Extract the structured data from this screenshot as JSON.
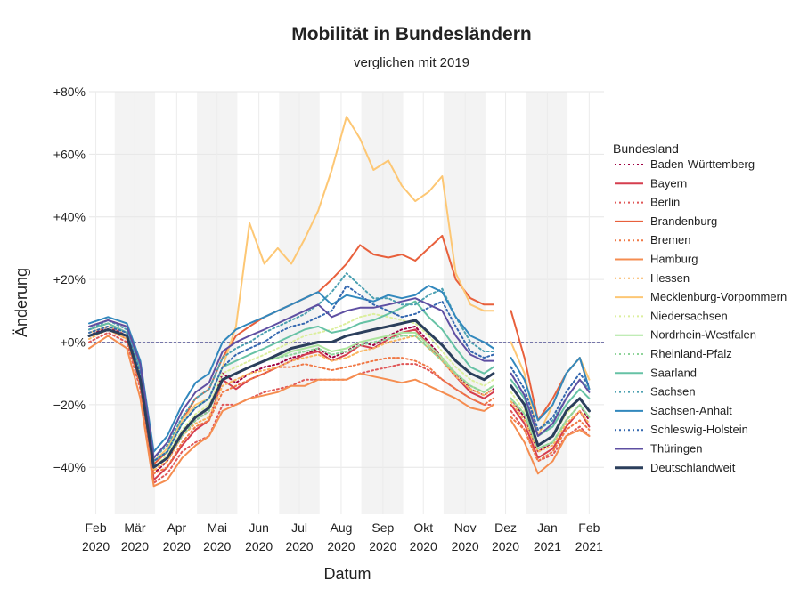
{
  "chart_data": {
    "type": "line",
    "title": "Mobilität in Bundesländern",
    "subtitle": "verglichen mit 2019",
    "xlabel": "Datum",
    "ylabel": "Änderung",
    "ylim": [
      -55,
      80
    ],
    "xlim": [
      "2020-01-27",
      "2021-02-12"
    ],
    "y_ticks": [
      {
        "value": 80,
        "label": "+80%"
      },
      {
        "value": 60,
        "label": "+60%"
      },
      {
        "value": 40,
        "label": "+40%"
      },
      {
        "value": 20,
        "label": "+20%"
      },
      {
        "value": 0,
        "label": "+0%"
      },
      {
        "value": -20,
        "label": "−20%"
      },
      {
        "value": -40,
        "label": "−40%"
      }
    ],
    "x_ticks": [
      {
        "date": "2020-02-01",
        "month": "Feb",
        "year": "2020"
      },
      {
        "date": "2020-03-01",
        "month": "Mär",
        "year": "2020"
      },
      {
        "date": "2020-04-01",
        "month": "Apr",
        "year": "2020"
      },
      {
        "date": "2020-05-01",
        "month": "Mai",
        "year": "2020"
      },
      {
        "date": "2020-06-01",
        "month": "Jun",
        "year": "2020"
      },
      {
        "date": "2020-07-01",
        "month": "Jul",
        "year": "2020"
      },
      {
        "date": "2020-08-01",
        "month": "Aug",
        "year": "2020"
      },
      {
        "date": "2020-09-01",
        "month": "Sep",
        "year": "2020"
      },
      {
        "date": "2020-10-01",
        "month": "Okt",
        "year": "2020"
      },
      {
        "date": "2020-11-01",
        "month": "Nov",
        "year": "2020"
      },
      {
        "date": "2020-12-01",
        "month": "Dez",
        "year": "2020"
      },
      {
        "date": "2021-01-01",
        "month": "Jan",
        "year": "2021"
      },
      {
        "date": "2021-02-01",
        "month": "Feb",
        "year": "2021"
      }
    ],
    "shaded_months": [
      [
        "2020-02-15",
        "2020-03-16"
      ],
      [
        "2020-04-16",
        "2020-05-16"
      ],
      [
        "2020-06-16",
        "2020-07-16"
      ],
      [
        "2020-08-16",
        "2020-09-16"
      ],
      [
        "2020-10-16",
        "2020-11-16"
      ],
      [
        "2020-12-16",
        "2021-01-16"
      ]
    ],
    "reference_line": 0,
    "grid": true,
    "legend_placement": "right",
    "legend_title": "Bundesland",
    "x": [
      "2020-01-27",
      "2020-02-10",
      "2020-02-24",
      "2020-03-05",
      "2020-03-15",
      "2020-03-25",
      "2020-04-05",
      "2020-04-15",
      "2020-04-25",
      "2020-05-05",
      "2020-05-15",
      "2020-05-25",
      "2020-06-05",
      "2020-06-15",
      "2020-06-25",
      "2020-07-05",
      "2020-07-15",
      "2020-07-25",
      "2020-08-05",
      "2020-08-15",
      "2020-08-25",
      "2020-09-05",
      "2020-09-15",
      "2020-09-25",
      "2020-10-05",
      "2020-10-15",
      "2020-10-25",
      "2020-11-05",
      "2020-11-15",
      "2020-11-22",
      "2020-11-28",
      "2020-12-05",
      "2020-12-15",
      "2020-12-25",
      "2021-01-05",
      "2021-01-15",
      "2021-01-25",
      "2021-02-01"
    ],
    "series": [
      {
        "name": "Baden-Württemberg",
        "color": "#9e0142",
        "dash": "dot",
        "values": [
          2,
          5,
          2,
          -12,
          -42,
          -38,
          -30,
          -25,
          -22,
          -10,
          -13,
          -10,
          -8,
          -7,
          -5,
          -4,
          -2,
          -5,
          -3,
          0,
          -1,
          2,
          4,
          5,
          0,
          -5,
          -10,
          -15,
          -17,
          -15,
          null,
          -18,
          -24,
          -35,
          -32,
          -25,
          -20,
          -25
        ]
      },
      {
        "name": "Bayern",
        "color": "#d53e4f",
        "dash": "solid",
        "values": [
          4,
          6,
          3,
          -10,
          -44,
          -40,
          -33,
          -28,
          -25,
          -12,
          -15,
          -12,
          -10,
          -8,
          -6,
          -4,
          -3,
          -6,
          -4,
          -1,
          -2,
          1,
          3,
          4,
          -1,
          -6,
          -11,
          -16,
          -18,
          -16,
          null,
          -20,
          -26,
          -37,
          -34,
          -27,
          -22,
          -27
        ]
      },
      {
        "name": "Berlin",
        "color": "#e05758",
        "dash": "dot",
        "values": [
          0,
          3,
          0,
          -15,
          -45,
          -42,
          -35,
          -32,
          -30,
          -20,
          -20,
          -18,
          -16,
          -15,
          -14,
          -12,
          -12,
          -12,
          -12,
          -10,
          -9,
          -8,
          -7,
          -7,
          -9,
          -12,
          -15,
          -18,
          -20,
          -20,
          null,
          -22,
          -28,
          -38,
          -36,
          -30,
          -27,
          -30
        ]
      },
      {
        "name": "Brandenburg",
        "color": "#e8603c",
        "dash": "solid",
        "values": [
          5,
          7,
          5,
          -8,
          -39,
          -35,
          -25,
          -18,
          -15,
          -5,
          2,
          5,
          8,
          10,
          12,
          14,
          16,
          20,
          25,
          31,
          28,
          27,
          28,
          26,
          30,
          34,
          20,
          14,
          12,
          12,
          null,
          10,
          -5,
          -25,
          -18,
          -10,
          -5,
          -15
        ]
      },
      {
        "name": "Bremen",
        "color": "#f07845",
        "dash": "dot",
        "values": [
          2,
          4,
          1,
          -14,
          -42,
          -40,
          -32,
          -27,
          -25,
          -16,
          -14,
          -12,
          -10,
          -8,
          -8,
          -7,
          -8,
          -9,
          -8,
          -7,
          -6,
          -5,
          -5,
          -6,
          -8,
          -12,
          -15,
          -18,
          -20,
          -18,
          null,
          -24,
          -28,
          -38,
          -35,
          -28,
          -25,
          -28
        ]
      },
      {
        "name": "Hamburg",
        "color": "#f58d50",
        "dash": "solid",
        "values": [
          -2,
          2,
          -2,
          -18,
          -46,
          -44,
          -37,
          -33,
          -30,
          -22,
          -20,
          -18,
          -17,
          -16,
          -14,
          -14,
          -12,
          -12,
          -12,
          -10,
          -11,
          -12,
          -13,
          -12,
          -14,
          -16,
          -18,
          -21,
          -22,
          -20,
          null,
          -25,
          -32,
          -42,
          -38,
          -30,
          -28,
          -30
        ]
      },
      {
        "name": "Hessen",
        "color": "#f9b45e",
        "dash": "dot",
        "values": [
          1,
          4,
          1,
          -12,
          -41,
          -38,
          -30,
          -26,
          -24,
          -14,
          -12,
          -10,
          -9,
          -8,
          -6,
          -5,
          -4,
          -6,
          -5,
          -3,
          -2,
          0,
          1,
          2,
          -2,
          -6,
          -11,
          -15,
          -17,
          -15,
          null,
          -19,
          -25,
          -35,
          -33,
          -26,
          -22,
          -26
        ]
      },
      {
        "name": "Mecklenburg-Vorpommern",
        "color": "#fdc774",
        "dash": "solid",
        "values": [
          3,
          5,
          3,
          -10,
          -38,
          -34,
          -25,
          -20,
          -18,
          -8,
          5,
          38,
          25,
          30,
          25,
          33,
          42,
          55,
          72,
          65,
          55,
          58,
          50,
          45,
          48,
          53,
          22,
          12,
          10,
          10,
          null,
          0,
          -10,
          -30,
          -20,
          -10,
          -5,
          -12
        ]
      },
      {
        "name": "Niedersachsen",
        "color": "#dcef9e",
        "dash": "dot",
        "values": [
          3,
          5,
          3,
          -10,
          -40,
          -36,
          -28,
          -23,
          -20,
          -10,
          -8,
          -6,
          -4,
          -2,
          0,
          2,
          3,
          4,
          6,
          8,
          9,
          8,
          7,
          6,
          2,
          -3,
          -8,
          -12,
          -14,
          -12,
          null,
          -16,
          -22,
          -33,
          -30,
          -23,
          -18,
          -22
        ]
      },
      {
        "name": "Nordrhein-Westfalen",
        "color": "#ace59e",
        "dash": "solid",
        "values": [
          2,
          4,
          2,
          -12,
          -40,
          -37,
          -29,
          -24,
          -21,
          -12,
          -10,
          -8,
          -6,
          -5,
          -3,
          -2,
          -1,
          -3,
          -2,
          0,
          1,
          2,
          3,
          3,
          -1,
          -5,
          -10,
          -14,
          -16,
          -14,
          null,
          -18,
          -23,
          -34,
          -32,
          -25,
          -20,
          -24
        ]
      },
      {
        "name": "Rheinland-Pfalz",
        "color": "#8fd49a",
        "dash": "dot",
        "values": [
          2,
          4,
          2,
          -12,
          -40,
          -37,
          -30,
          -25,
          -22,
          -12,
          -10,
          -8,
          -6,
          -5,
          -4,
          -3,
          -2,
          -4,
          -3,
          -1,
          0,
          1,
          2,
          2,
          -2,
          -6,
          -10,
          -14,
          -16,
          -14,
          null,
          -18,
          -23,
          -34,
          -32,
          -25,
          -20,
          -24
        ]
      },
      {
        "name": "Saarland",
        "color": "#66c2a5",
        "dash": "solid",
        "values": [
          4,
          6,
          3,
          -9,
          -38,
          -35,
          -26,
          -21,
          -18,
          -8,
          -6,
          -4,
          -2,
          0,
          2,
          4,
          5,
          3,
          4,
          6,
          7,
          9,
          11,
          13,
          8,
          4,
          -2,
          -8,
          -10,
          -8,
          null,
          -12,
          -18,
          -30,
          -27,
          -20,
          -15,
          -18
        ]
      },
      {
        "name": "Sachsen",
        "color": "#4ba0b1",
        "dash": "dot",
        "values": [
          4,
          7,
          4,
          -8,
          -37,
          -33,
          -24,
          -18,
          -15,
          -5,
          -2,
          0,
          3,
          5,
          7,
          9,
          12,
          16,
          22,
          18,
          14,
          14,
          12,
          12,
          15,
          17,
          8,
          0,
          -3,
          -3,
          null,
          -8,
          -15,
          -28,
          -25,
          -18,
          -12,
          -15
        ]
      },
      {
        "name": "Sachsen-Anhalt",
        "color": "#3288bd",
        "dash": "solid",
        "values": [
          6,
          8,
          6,
          -6,
          -35,
          -30,
          -20,
          -13,
          -10,
          0,
          4,
          6,
          8,
          10,
          12,
          14,
          16,
          12,
          15,
          14,
          13,
          15,
          14,
          15,
          18,
          16,
          8,
          2,
          0,
          -2,
          null,
          -5,
          -12,
          -25,
          -20,
          -10,
          -5,
          -15
        ]
      },
      {
        "name": "Schleswig-Holstein",
        "color": "#3568b0",
        "dash": "dot",
        "values": [
          3,
          5,
          3,
          -10,
          -38,
          -35,
          -26,
          -21,
          -18,
          -8,
          -4,
          -2,
          0,
          3,
          5,
          6,
          8,
          10,
          18,
          15,
          12,
          10,
          8,
          9,
          11,
          13,
          5,
          -3,
          -5,
          -4,
          null,
          -8,
          -15,
          -28,
          -24,
          -16,
          -10,
          -14
        ]
      },
      {
        "name": "Thüringen",
        "color": "#5e4fa2",
        "dash": "solid",
        "values": [
          5,
          7,
          5,
          -7,
          -37,
          -32,
          -22,
          -16,
          -13,
          -3,
          0,
          2,
          4,
          6,
          8,
          10,
          12,
          8,
          10,
          11,
          11,
          12,
          13,
          14,
          12,
          10,
          2,
          -4,
          -6,
          -6,
          null,
          -10,
          -17,
          -30,
          -26,
          -18,
          -12,
          -16
        ]
      },
      {
        "name": "Deutschlandweit",
        "color": "#2b3f5c",
        "dash": "solid",
        "bold": true,
        "values": [
          2,
          4,
          2,
          -12,
          -40,
          -37,
          -29,
          -24,
          -21,
          -12,
          -10,
          -8,
          -6,
          -4,
          -2,
          -1,
          0,
          0,
          2,
          3,
          4,
          5,
          6,
          7,
          3,
          -1,
          -6,
          -10,
          -12,
          -10,
          null,
          -14,
          -20,
          -33,
          -30,
          -22,
          -18,
          -22
        ]
      }
    ]
  }
}
